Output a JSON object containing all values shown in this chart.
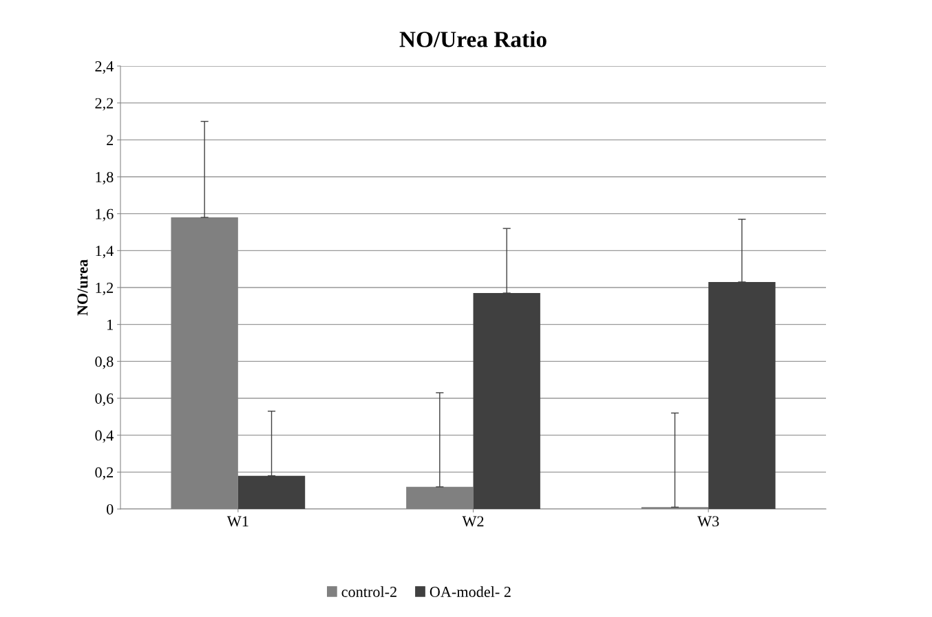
{
  "chart_data": {
    "type": "bar",
    "title": "NO/Urea Ratio",
    "ylabel": "NO/urea",
    "categories": [
      "W1",
      "W2",
      "W3"
    ],
    "series": [
      {
        "name": "control-2",
        "color": "#808080",
        "values": [
          1.58,
          0.12,
          0.01
        ],
        "errors": [
          [
            1.58,
            2.1
          ],
          [
            0.12,
            0.63
          ],
          [
            0.01,
            0.52
          ]
        ]
      },
      {
        "name": "OA-model- 2",
        "color": "#404040",
        "values": [
          0.18,
          1.17,
          1.23
        ],
        "errors": [
          [
            0.18,
            0.53
          ],
          [
            1.17,
            1.52
          ],
          [
            1.23,
            1.57
          ]
        ]
      }
    ],
    "ylim": [
      0,
      2.4
    ],
    "yticks": [
      0,
      {
        "value": 0.2,
        "label": "0,2"
      },
      {
        "value": 0.4,
        "label": "0,4"
      },
      {
        "value": 0.6,
        "label": "0,6"
      },
      {
        "value": 0.8,
        "label": "0,8"
      },
      1,
      {
        "value": 1.2,
        "label": "1,2"
      },
      {
        "value": 1.4,
        "label": "1,4"
      },
      {
        "value": 1.6,
        "label": "1,6"
      },
      {
        "value": 1.8,
        "label": "1,8"
      },
      2,
      {
        "value": 2.2,
        "label": "2,2"
      },
      {
        "value": 2.4,
        "label": "2,4"
      }
    ],
    "grid": "y",
    "legend": "bottom"
  }
}
